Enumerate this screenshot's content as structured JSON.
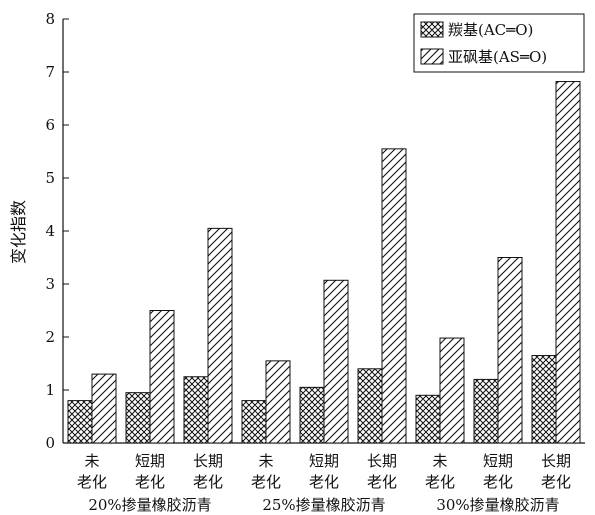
{
  "chart_data": {
    "type": "bar",
    "ylabel": "变化指数",
    "ylim": [
      0,
      8
    ],
    "yticks": [
      0,
      1,
      2,
      3,
      4,
      5,
      6,
      7,
      8
    ],
    "grid": false,
    "legend_position": "top-right",
    "groups": [
      {
        "label": "20%掺量橡胶沥青",
        "categories": [
          {
            "line1": "未",
            "line2": "老化"
          },
          {
            "line1": "短期",
            "line2": "老化"
          },
          {
            "line1": "长期",
            "line2": "老化"
          }
        ]
      },
      {
        "label": "25%掺量橡胶沥青",
        "categories": [
          {
            "line1": "未",
            "line2": "老化"
          },
          {
            "line1": "短期",
            "line2": "老化"
          },
          {
            "line1": "长期",
            "line2": "老化"
          }
        ]
      },
      {
        "label": "30%掺量橡胶沥青",
        "categories": [
          {
            "line1": "未",
            "line2": "老化"
          },
          {
            "line1": "短期",
            "line2": "老化"
          },
          {
            "line1": "长期",
            "line2": "老化"
          }
        ]
      }
    ],
    "series": [
      {
        "name": "羰基(AC═O)",
        "pattern": "crosshatch",
        "values": [
          0.8,
          0.95,
          1.25,
          0.8,
          1.05,
          1.4,
          0.9,
          1.2,
          1.65
        ]
      },
      {
        "name": "亚砜基(AS═O)",
        "pattern": "diagonal",
        "values": [
          1.3,
          2.5,
          4.05,
          1.55,
          3.07,
          5.55,
          1.98,
          3.5,
          6.82
        ]
      }
    ]
  }
}
